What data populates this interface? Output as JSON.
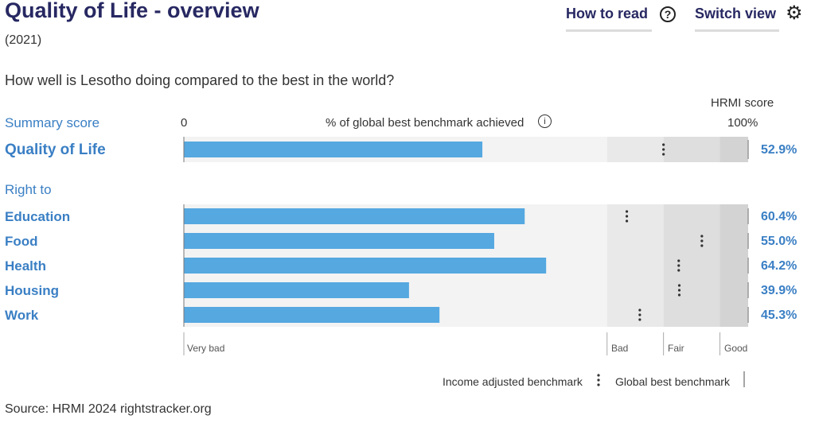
{
  "header": {
    "title": "Quality of Life - overview",
    "year": "(2021)",
    "question": "How well is Lesotho doing compared to the best in the world?",
    "how_to_read": "How to read",
    "switch_view": "Switch view",
    "hrmi_score": "HRMI score"
  },
  "axis": {
    "summary_score": "Summary score",
    "zero": "0",
    "caption": "% of global best benchmark achieved",
    "hundred": "100%"
  },
  "right_to": "Right to",
  "bands": {
    "very_bad": "Very bad",
    "bad": "Bad",
    "fair": "Fair",
    "good": "Good"
  },
  "legend": {
    "income_adjusted": "Income adjusted benchmark",
    "global_best": "Global best benchmark"
  },
  "source": "Source: HRMI 2024 rightstracker.org",
  "colors": {
    "bar": "#55a8e0",
    "bg_very_bad": "#f3f3f3",
    "bg_bad": "#e9e9e9",
    "bg_fair": "#dedede",
    "bg_good": "#d3d3d3",
    "label": "#3a7fc4"
  },
  "chart_data": {
    "type": "bar",
    "orientation": "horizontal",
    "xlim": [
      0,
      100
    ],
    "band_edges_pct": [
      0,
      75,
      85,
      95,
      100
    ],
    "summary": {
      "name": "Quality of Life",
      "value": 52.9,
      "score_label": "52.9%",
      "income_adjusted_benchmark": 85
    },
    "categories": [
      "Education",
      "Food",
      "Health",
      "Housing",
      "Work"
    ],
    "values": [
      60.4,
      55.0,
      64.2,
      39.9,
      45.3
    ],
    "score_labels": [
      "60.4%",
      "55.0%",
      "64.2%",
      "39.9%",
      "45.3%"
    ],
    "income_adjusted_benchmark": [
      78.5,
      91.8,
      87.7,
      87.8,
      80.8
    ]
  }
}
